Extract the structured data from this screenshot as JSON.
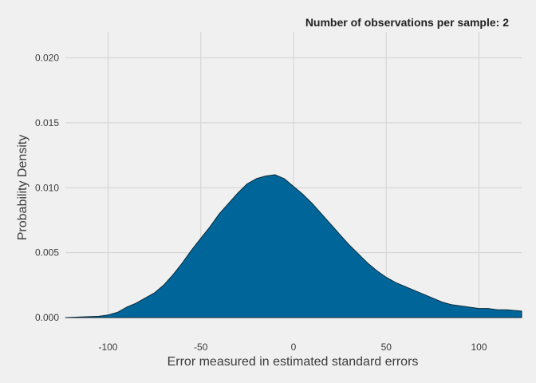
{
  "chart_data": {
    "type": "area",
    "title": "Number of observations per sample: 2",
    "xlabel": "Error measured in estimated standard errors",
    "ylabel": "Probability Density",
    "xlim": [
      -123,
      123
    ],
    "ylim": [
      0,
      0.022
    ],
    "x_ticks": [
      -100,
      -50,
      0,
      50,
      100
    ],
    "x_tick_labels": [
      "-100",
      "-50",
      "0",
      "50",
      "100"
    ],
    "y_ticks": [
      0.0,
      0.005,
      0.01,
      0.015,
      0.02
    ],
    "y_tick_labels": [
      "0.000",
      "0.005",
      "0.010",
      "0.015",
      "0.020"
    ],
    "grid": true,
    "series": [
      {
        "color": "#00669a",
        "x": [
          -123,
          -115,
          -105,
          -100,
          -95,
          -90,
          -85,
          -80,
          -75,
          -70,
          -65,
          -60,
          -55,
          -50,
          -45,
          -40,
          -35,
          -30,
          -25,
          -20,
          -15,
          -10,
          -5,
          0,
          5,
          10,
          15,
          20,
          25,
          30,
          35,
          40,
          45,
          50,
          55,
          60,
          65,
          70,
          75,
          80,
          85,
          90,
          95,
          100,
          105,
          110,
          115,
          123
        ],
        "y": [
          0.0,
          5e-05,
          0.0001,
          0.0002,
          0.0004,
          0.0008,
          0.0011,
          0.0015,
          0.0019,
          0.0025,
          0.0033,
          0.0042,
          0.0052,
          0.0061,
          0.007,
          0.008,
          0.0088,
          0.0096,
          0.0103,
          0.0107,
          0.0109,
          0.011,
          0.0107,
          0.0101,
          0.0095,
          0.0088,
          0.008,
          0.0072,
          0.0064,
          0.0056,
          0.0049,
          0.0042,
          0.0036,
          0.0031,
          0.0027,
          0.0024,
          0.0021,
          0.0018,
          0.0015,
          0.0012,
          0.001,
          0.0009,
          0.0008,
          0.0007,
          0.0007,
          0.0006,
          0.0006,
          0.0005
        ]
      }
    ]
  }
}
